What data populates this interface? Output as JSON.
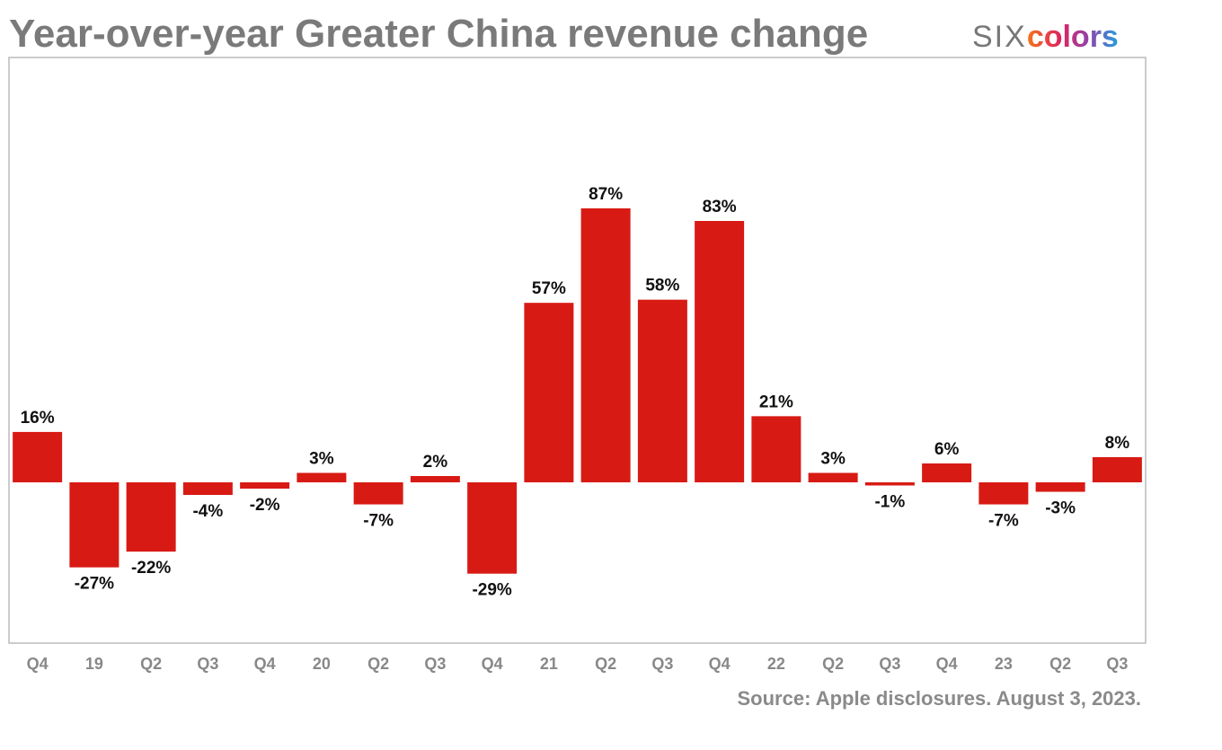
{
  "chart_data": {
    "type": "bar",
    "title": "Year-over-year Greater China revenue change",
    "logo": {
      "prefix": "SIX",
      "suffix": "colors"
    },
    "source": "Source: Apple disclosures. August 3, 2023.",
    "categories": [
      "Q4",
      "19",
      "Q2",
      "Q3",
      "Q4",
      "20",
      "Q2",
      "Q3",
      "Q4",
      "21",
      "Q2",
      "Q3",
      "Q4",
      "22",
      "Q2",
      "Q3",
      "Q4",
      "23",
      "Q2",
      "Q3"
    ],
    "values": [
      16,
      -27,
      -22,
      -4,
      -2,
      3,
      -7,
      2,
      -29,
      57,
      87,
      58,
      83,
      21,
      3,
      -1,
      6,
      -7,
      -3,
      8
    ],
    "value_labels": [
      "16%",
      "-27%",
      "-22%",
      "-4%",
      "-2%",
      "3%",
      "-7%",
      "2%",
      "-29%",
      "57%",
      "87%",
      "58%",
      "83%",
      "21%",
      "3%",
      "-1%",
      "6%",
      "-7%",
      "-3%",
      "8%"
    ],
    "color": "#d81a14"
  }
}
